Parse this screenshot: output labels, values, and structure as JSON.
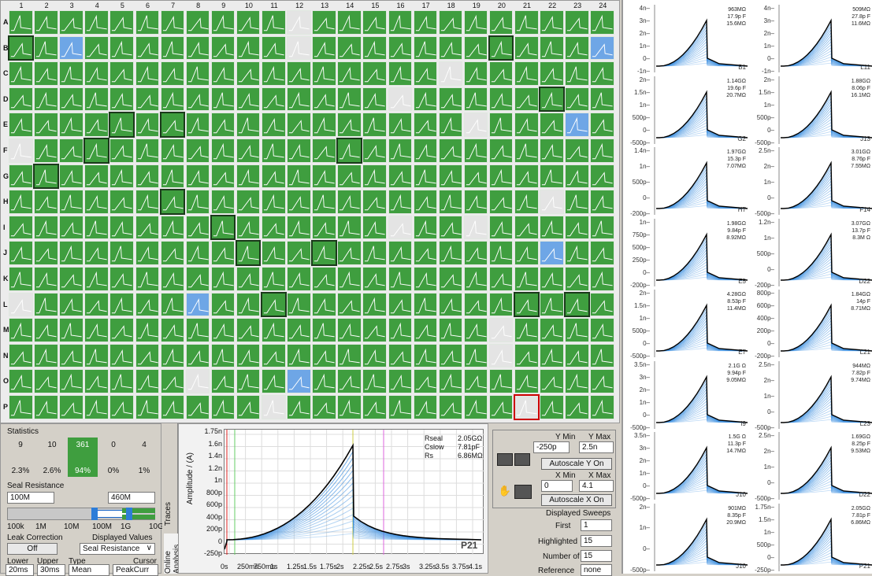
{
  "plate": {
    "columns": [
      "1",
      "2",
      "3",
      "4",
      "5",
      "6",
      "7",
      "8",
      "9",
      "10",
      "11",
      "12",
      "13",
      "14",
      "15",
      "16",
      "17",
      "18",
      "19",
      "20",
      "21",
      "22",
      "23",
      "24"
    ],
    "rows": [
      "A",
      "B",
      "C",
      "D",
      "E",
      "F",
      "G",
      "H",
      "I",
      "J",
      "K",
      "L",
      "M",
      "N",
      "O",
      "P"
    ],
    "selected_wells": [
      "B1",
      "B20",
      "E5",
      "E7",
      "D22",
      "F4",
      "F14",
      "G2",
      "H7",
      "I9",
      "J10",
      "J13",
      "L11",
      "L21",
      "L23"
    ],
    "highlighted_well": "P21",
    "gray_wells": [
      "A12",
      "B12",
      "C18",
      "D16",
      "E19",
      "F1",
      "H22",
      "I16",
      "I19",
      "L1",
      "M20",
      "N20",
      "O8",
      "P11",
      "P21"
    ],
    "blue_wells": [
      "B3",
      "B24",
      "E23",
      "I16",
      "J22",
      "L8",
      "O12"
    ]
  },
  "statistics": {
    "title": "Statistics",
    "counts": [
      "9",
      "10",
      "361",
      "0",
      "4"
    ],
    "percents": [
      "2.3%",
      "2.6%",
      "94%",
      "0%",
      "1%"
    ],
    "seal_resistance_label": "Seal Resistance",
    "seal_lower": "100M",
    "seal_upper": "460M",
    "scale_ticks": [
      "100k",
      "1M",
      "10M",
      "100M",
      "1G",
      "10G"
    ],
    "leak_correction_label": "Leak Correction",
    "leak_correction_value": "Off",
    "displayed_values_label": "Displayed Values",
    "displayed_values_value": "Seal Resistance",
    "lower_label": "Lower",
    "upper_label": "Upper",
    "type_label": "Type",
    "cursor_label": "Cursor",
    "lower_value": "20ms",
    "upper_value": "30ms",
    "type_value": "Mean",
    "cursor_value": "PeakCurr"
  },
  "tabs": {
    "traces": "Traces",
    "online": "Online Analysis"
  },
  "trace_plot": {
    "ylabel": "Amplitude / (A)",
    "yticks": [
      "1.75n",
      "1.6n",
      "1.4n",
      "1.2n",
      "1n",
      "800p",
      "600p",
      "400p",
      "200p",
      "0",
      "-250p"
    ],
    "xticks": [
      "0s",
      "250ms",
      "750ms",
      "1s",
      "1.25s",
      "1.5s",
      "1.75s",
      "2s",
      "2.25s",
      "2.5s",
      "2.75s",
      "3s",
      "3.25s",
      "3.5s",
      "3.75s",
      "4.1s"
    ],
    "rseal_label": "Rseal",
    "rseal_value": "2.05GΩ",
    "cslow_label": "Cslow",
    "cslow_value": "7.81pF",
    "rs_label": "Rs",
    "rs_value": "6.86MΩ",
    "well": "P21"
  },
  "controls": {
    "ymin_label": "Y Min",
    "ymax_label": "Y Max",
    "ymin": "-250p",
    "ymax": "2.5n",
    "autoscale_y": "Autoscale Y On",
    "xmin_label": "X Min",
    "xmax_label": "X Max",
    "xmin": "0",
    "xmax": "4.1",
    "autoscale_x": "Autoscale X On",
    "displayed_sweeps": "Displayed Sweeps",
    "first_label": "First",
    "first": "1",
    "highlighted_label": "Highlighted",
    "highlighted": "15",
    "number_label": "Number of",
    "number": "15",
    "reference_label": "Reference",
    "reference": "none"
  },
  "minis": [
    {
      "well": "B1",
      "r": "963MΩ",
      "c": "17.9p F",
      "s": "15.6MΩ",
      "yt": [
        "4n",
        "3n",
        "2n",
        "1n",
        "0",
        "-1n"
      ]
    },
    {
      "well": "L11",
      "r": "509MΩ",
      "c": "27.8p F",
      "s": "11.6MΩ",
      "yt": [
        "4n",
        "3n",
        "2n",
        "1n",
        "0",
        "-1n"
      ]
    },
    {
      "well": "G2",
      "r": "1.14GΩ",
      "c": "19.6p F",
      "s": "20.7MΩ",
      "yt": [
        "2n",
        "1.5n",
        "1n",
        "500p",
        "0",
        "-500p"
      ]
    },
    {
      "well": "J13",
      "r": "1.88GΩ",
      "c": "8.06p F",
      "s": "16.1MΩ",
      "yt": [
        "2n",
        "1.5n",
        "1n",
        "500p",
        "0",
        "-500p"
      ]
    },
    {
      "well": "H7",
      "r": "1.97GΩ",
      "c": "15.3p F",
      "s": "7.07MΩ",
      "yt": [
        "1.4n",
        "1n",
        "500p",
        "0",
        "-200p"
      ]
    },
    {
      "well": "F14",
      "r": "3.01GΩ",
      "c": "8.76p F",
      "s": "7.55MΩ",
      "yt": [
        "2.5n",
        "2n",
        "1n",
        "0",
        "-500p"
      ]
    },
    {
      "well": "E5",
      "r": "1.98GΩ",
      "c": "9.84p F",
      "s": "8.92MΩ",
      "yt": [
        "1n",
        "750p",
        "500p",
        "250p",
        "0",
        "-200p"
      ]
    },
    {
      "well": "D22",
      "r": "3.07GΩ",
      "c": "13.7p F",
      "s": "8.3M Ω",
      "yt": [
        "1.2n",
        "1n",
        "500p",
        "0",
        "-200p"
      ]
    },
    {
      "well": "E7",
      "r": "4.28GΩ",
      "c": "8.53p F",
      "s": "11.4MΩ",
      "yt": [
        "2n",
        "1.5n",
        "1n",
        "500p",
        "0",
        "-500p"
      ]
    },
    {
      "well": "L21",
      "r": "1.84GΩ",
      "c": "14p F",
      "s": "8.71MΩ",
      "yt": [
        "800p",
        "600p",
        "400p",
        "200p",
        "0",
        "-200p"
      ]
    },
    {
      "well": "I9",
      "r": "2.1G Ω",
      "c": "9.94p F",
      "s": "9.05MΩ",
      "yt": [
        "3.5n",
        "3n",
        "2n",
        "1n",
        "0",
        "-500p"
      ]
    },
    {
      "well": "L23",
      "r": "944MΩ",
      "c": "7.82p F",
      "s": "9.74MΩ",
      "yt": [
        "2.5n",
        "2n",
        "1n",
        "0",
        "-500p"
      ]
    },
    {
      "well": "J10",
      "r": "1.5G Ω",
      "c": "11.3p F",
      "s": "14.7MΩ",
      "yt": [
        "3.5n",
        "3n",
        "2n",
        "1n",
        "0",
        "-500p"
      ]
    },
    {
      "well": "D22",
      "r": "1.69GΩ",
      "c": "8.25p F",
      "s": "9.53MΩ",
      "yt": [
        "2.5n",
        "2n",
        "1n",
        "0",
        "-500p"
      ]
    },
    {
      "well": "J10",
      "r": "901MΩ",
      "c": "8.35p F",
      "s": "20.9MΩ",
      "yt": [
        "2n",
        "1n",
        "0",
        "-500p"
      ]
    },
    {
      "well": "P21",
      "r": "2.05GΩ",
      "c": "7.81p F",
      "s": "6.86MΩ",
      "yt": [
        "1.75n",
        "1.5n",
        "1n",
        "500p",
        "0",
        "-250p"
      ]
    }
  ],
  "colors": {
    "pass": "#3f9e3f",
    "fail": "#e4e4e4",
    "warn": "#6ea6e6",
    "trace": "#3a8ee0",
    "highlight": "#000000"
  }
}
